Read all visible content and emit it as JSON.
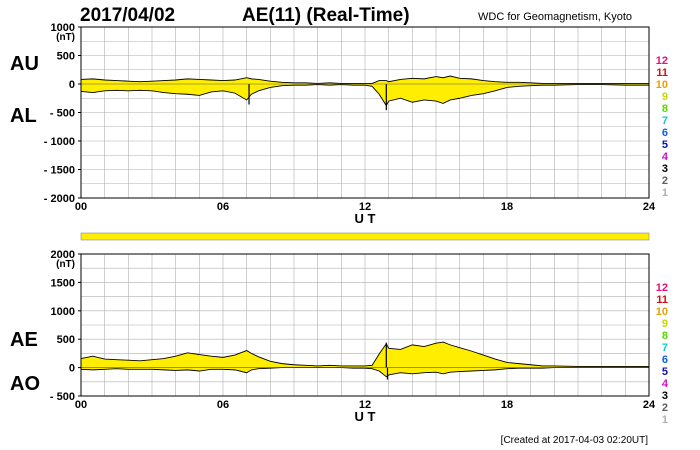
{
  "header": {
    "date": "2017/04/02",
    "title": "AE(11) (Real-Time)",
    "organization": "WDC for Geomagnetism, Kyoto"
  },
  "footer": {
    "created": "[Created at 2017-04-03 02:20UT]"
  },
  "colors": {
    "fill": "#ffee00",
    "line": "#000000",
    "grid": "#b0b0b0"
  },
  "station_counts": [
    "12",
    "11",
    "10",
    "9",
    "8",
    "7",
    "6",
    "5",
    "4",
    "3",
    "2",
    "1"
  ],
  "station_colors": [
    "#e0137a",
    "#d21010",
    "#e8a000",
    "#c8d800",
    "#58d800",
    "#10c8d8",
    "#1060e0",
    "#1010b0",
    "#d010d0",
    "#000000",
    "#606060",
    "#b0b0b0"
  ],
  "chart_data": [
    {
      "type": "area",
      "title": "AU / AL",
      "series_labels": [
        "AU",
        "AL"
      ],
      "xlabel": "U T",
      "ylabel": "(nT)",
      "xlim": [
        0,
        24
      ],
      "ylim": [
        -2000,
        1000
      ],
      "xticks": [
        "00",
        "06",
        "12",
        "18",
        "24"
      ],
      "yticks": [
        {
          "value": 1000,
          "label": "1000"
        },
        {
          "value": 500,
          "label": "500"
        },
        {
          "value": 0,
          "label": "0"
        },
        {
          "value": -500,
          "label": "- 500"
        },
        {
          "value": -1000,
          "label": "- 1000"
        },
        {
          "value": -1500,
          "label": "- 1500"
        },
        {
          "value": -2000,
          "label": "- 2000"
        }
      ],
      "x": [
        0,
        0.5,
        1,
        1.5,
        2,
        2.5,
        3,
        3.5,
        4,
        4.5,
        5,
        5.5,
        6,
        6.5,
        7,
        7.2,
        7.5,
        8,
        8.5,
        9,
        9.5,
        10,
        10.5,
        11,
        11.5,
        12,
        12.3,
        12.6,
        12.9,
        13,
        13.5,
        14,
        14.5,
        15,
        15.3,
        15.6,
        16,
        16.5,
        17,
        17.5,
        18,
        18.5,
        19,
        19.5,
        20,
        21,
        22,
        23,
        24
      ],
      "series": [
        {
          "name": "AU",
          "values": [
            80,
            90,
            70,
            60,
            50,
            40,
            50,
            60,
            70,
            90,
            80,
            70,
            60,
            70,
            110,
            90,
            80,
            50,
            30,
            20,
            20,
            10,
            20,
            10,
            10,
            10,
            10,
            60,
            60,
            40,
            80,
            100,
            90,
            130,
            110,
            140,
            100,
            90,
            60,
            40,
            30,
            30,
            20,
            10,
            10,
            10,
            10,
            10,
            10
          ]
        },
        {
          "name": "AL",
          "values": [
            -130,
            -150,
            -120,
            -110,
            -120,
            -110,
            -120,
            -150,
            -170,
            -180,
            -200,
            -140,
            -120,
            -160,
            -280,
            -180,
            -120,
            -60,
            -30,
            -20,
            -20,
            -10,
            -20,
            -10,
            -20,
            -20,
            -40,
            -180,
            -380,
            -300,
            -250,
            -320,
            -280,
            -300,
            -340,
            -280,
            -250,
            -200,
            -170,
            -120,
            -60,
            -40,
            -30,
            -20,
            -20,
            -10,
            -10,
            -20,
            -20
          ]
        }
      ],
      "spikes": [
        {
          "x": 7.1,
          "y": -360
        },
        {
          "x": 12.9,
          "y": -460
        }
      ]
    },
    {
      "type": "area",
      "title": "AE / AO",
      "series_labels": [
        "AE",
        "AO"
      ],
      "xlabel": "U T",
      "ylabel": "(nT)",
      "xlim": [
        0,
        24
      ],
      "ylim": [
        -500,
        2000
      ],
      "xticks": [
        "00",
        "06",
        "12",
        "18",
        "24"
      ],
      "yticks": [
        {
          "value": 2000,
          "label": "2000"
        },
        {
          "value": 1500,
          "label": "1500"
        },
        {
          "value": 1000,
          "label": "1000"
        },
        {
          "value": 500,
          "label": "500"
        },
        {
          "value": 0,
          "label": "0"
        },
        {
          "value": -500,
          "label": "- 500"
        }
      ],
      "x": [
        0,
        0.5,
        1,
        1.5,
        2,
        2.5,
        3,
        3.5,
        4,
        4.5,
        5,
        5.5,
        6,
        6.5,
        7,
        7.2,
        7.5,
        8,
        8.5,
        9,
        9.5,
        10,
        10.5,
        11,
        11.5,
        12,
        12.3,
        12.6,
        12.9,
        13,
        13.5,
        14,
        14.5,
        15,
        15.3,
        15.6,
        16,
        16.5,
        17,
        17.5,
        18,
        18.5,
        19,
        19.5,
        20,
        21,
        22,
        23,
        24
      ],
      "series": [
        {
          "name": "AE",
          "values": [
            160,
            200,
            150,
            140,
            130,
            120,
            140,
            160,
            200,
            260,
            230,
            200,
            180,
            220,
            300,
            250,
            190,
            110,
            70,
            50,
            40,
            30,
            40,
            30,
            30,
            30,
            40,
            240,
            420,
            340,
            320,
            400,
            370,
            430,
            450,
            400,
            350,
            290,
            220,
            150,
            90,
            70,
            50,
            30,
            30,
            20,
            20,
            20,
            20
          ]
        },
        {
          "name": "AO",
          "values": [
            -30,
            -40,
            -30,
            -20,
            -30,
            -30,
            -30,
            -40,
            -50,
            -40,
            -60,
            -30,
            -30,
            -40,
            -90,
            -40,
            -20,
            -10,
            0,
            0,
            0,
            0,
            0,
            0,
            -10,
            -10,
            -20,
            -60,
            -160,
            -130,
            -90,
            -110,
            -90,
            -80,
            -110,
            -80,
            -70,
            -60,
            -50,
            -40,
            -20,
            -10,
            -10,
            -10,
            0,
            0,
            0,
            0,
            0
          ]
        }
      ],
      "spikes": [
        {
          "x": 12.9,
          "y": 440
        },
        {
          "x": 12.95,
          "y": -210
        }
      ]
    }
  ]
}
